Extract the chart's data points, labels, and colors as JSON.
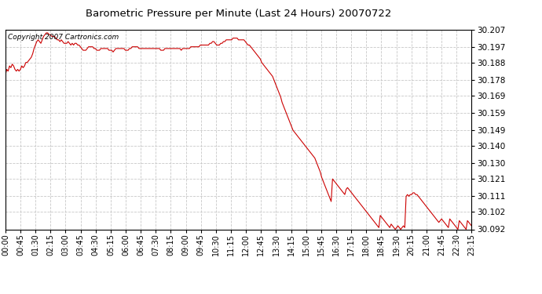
{
  "title": "Barometric Pressure per Minute (Last 24 Hours) 20070722",
  "copyright": "Copyright 2007 Cartronics.com",
  "line_color": "#cc0000",
  "bg_color": "#ffffff",
  "plot_bg_color": "#ffffff",
  "grid_color": "#c8c8c8",
  "ylim": [
    30.092,
    30.207
  ],
  "yticks": [
    30.092,
    30.102,
    30.111,
    30.121,
    30.13,
    30.14,
    30.149,
    30.159,
    30.169,
    30.178,
    30.188,
    30.197,
    30.207
  ],
  "xtick_labels": [
    "00:00",
    "00:45",
    "01:30",
    "02:15",
    "03:00",
    "03:45",
    "04:30",
    "05:15",
    "06:00",
    "06:45",
    "07:30",
    "08:15",
    "09:00",
    "09:45",
    "10:30",
    "11:15",
    "12:00",
    "12:45",
    "13:30",
    "14:15",
    "15:00",
    "15:45",
    "16:30",
    "17:15",
    "18:00",
    "18:45",
    "19:30",
    "20:15",
    "21:00",
    "21:45",
    "22:30",
    "23:15"
  ],
  "pressure_values": [
    30.181,
    30.184,
    30.183,
    30.186,
    30.185,
    30.187,
    30.186,
    30.184,
    30.183,
    30.184,
    30.183,
    30.184,
    30.186,
    30.185,
    30.186,
    30.188,
    30.188,
    30.189,
    30.19,
    30.191,
    30.193,
    30.196,
    30.198,
    30.2,
    30.201,
    30.2,
    30.199,
    30.201,
    30.203,
    30.204,
    30.205,
    30.205,
    30.204,
    30.204,
    30.203,
    30.203,
    30.203,
    30.202,
    30.201,
    30.201,
    30.2,
    30.201,
    30.2,
    30.199,
    30.199,
    30.199,
    30.2,
    30.199,
    30.198,
    30.199,
    30.198,
    30.199,
    30.199,
    30.198,
    30.198,
    30.197,
    30.196,
    30.195,
    30.195,
    30.195,
    30.196,
    30.197,
    30.197,
    30.197,
    30.197,
    30.196,
    30.196,
    30.195,
    30.195,
    30.195,
    30.196,
    30.196,
    30.196,
    30.196,
    30.196,
    30.196,
    30.195,
    30.195,
    30.195,
    30.194,
    30.195,
    30.196,
    30.196,
    30.196,
    30.196,
    30.196,
    30.196,
    30.196,
    30.195,
    30.195,
    30.195,
    30.196,
    30.196,
    30.197,
    30.197,
    30.197,
    30.197,
    30.197,
    30.196,
    30.196,
    30.196,
    30.196,
    30.196,
    30.196,
    30.196,
    30.196,
    30.196,
    30.196,
    30.196,
    30.196,
    30.196,
    30.196,
    30.196,
    30.196,
    30.195,
    30.195,
    30.195,
    30.196,
    30.196,
    30.196,
    30.196,
    30.196,
    30.196,
    30.196,
    30.196,
    30.196,
    30.196,
    30.196,
    30.196,
    30.195,
    30.196,
    30.196,
    30.196,
    30.196,
    30.196,
    30.196,
    30.197,
    30.197,
    30.197,
    30.197,
    30.197,
    30.197,
    30.197,
    30.198,
    30.198,
    30.198,
    30.198,
    30.198,
    30.198,
    30.198,
    30.199,
    30.199,
    30.2,
    30.2,
    30.199,
    30.198,
    30.198,
    30.198,
    30.199,
    30.199,
    30.2,
    30.2,
    30.201,
    30.201,
    30.201,
    30.201,
    30.201,
    30.202,
    30.202,
    30.202,
    30.202,
    30.201,
    30.201,
    30.201,
    30.201,
    30.201,
    30.2,
    30.199,
    30.198,
    30.198,
    30.197,
    30.196,
    30.195,
    30.194,
    30.193,
    30.192,
    30.191,
    30.19,
    30.188,
    30.187,
    30.186,
    30.185,
    30.184,
    30.183,
    30.182,
    30.181,
    30.18,
    30.178,
    30.176,
    30.174,
    30.172,
    30.17,
    30.168,
    30.165,
    30.163,
    30.161,
    30.159,
    30.157,
    30.155,
    30.153,
    30.151,
    30.149,
    30.148,
    30.147,
    30.146,
    30.145,
    30.144,
    30.143,
    30.142,
    30.141,
    30.14,
    30.139,
    30.138,
    30.137,
    30.136,
    30.135,
    30.134,
    30.133,
    30.131,
    30.129,
    30.127,
    30.125,
    30.122,
    30.12,
    30.118,
    30.116,
    30.114,
    30.112,
    30.11,
    30.108,
    30.121,
    30.12,
    30.119,
    30.118,
    30.117,
    30.116,
    30.115,
    30.114,
    30.113,
    30.112,
    30.115,
    30.116,
    30.115,
    30.114,
    30.113,
    30.112,
    30.111,
    30.11,
    30.109,
    30.108,
    30.107,
    30.106,
    30.105,
    30.104,
    30.103,
    30.102,
    30.101,
    30.1,
    30.099,
    30.098,
    30.097,
    30.096,
    30.095,
    30.094,
    30.093,
    30.1,
    30.099,
    30.098,
    30.097,
    30.096,
    30.095,
    30.094,
    30.093,
    30.095,
    30.094,
    30.093,
    30.092,
    30.093,
    30.094,
    30.093,
    30.092,
    30.093,
    30.094,
    30.093,
    30.111,
    30.112,
    30.111,
    30.112,
    30.112,
    30.113,
    30.113,
    30.112,
    30.112,
    30.111,
    30.11,
    30.109,
    30.108,
    30.107,
    30.106,
    30.105,
    30.104,
    30.103,
    30.102,
    30.101,
    30.1,
    30.099,
    30.098,
    30.097,
    30.096,
    30.097,
    30.098,
    30.097,
    30.096,
    30.095,
    30.094,
    30.093,
    30.098,
    30.097,
    30.096,
    30.095,
    30.094,
    30.093,
    30.092,
    30.097,
    30.096,
    30.095,
    30.094,
    30.093,
    30.092,
    30.097,
    30.096,
    30.095,
    30.094
  ]
}
